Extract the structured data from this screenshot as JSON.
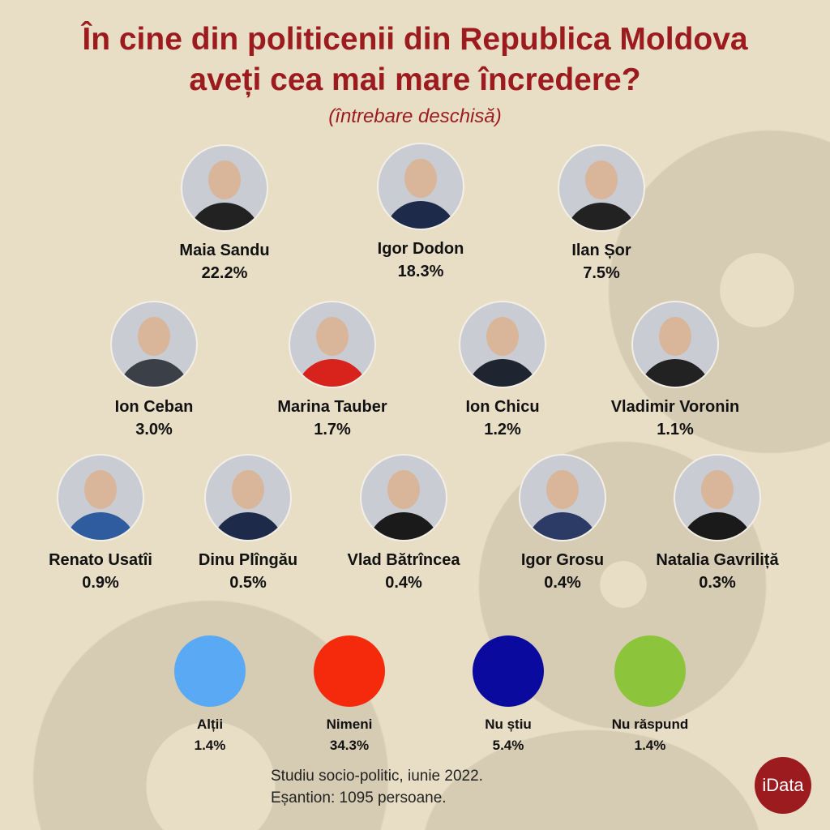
{
  "title_line1": "În cine din politicenii din Republica Moldova",
  "title_line2": "aveți cea mai mare încredere?",
  "subtitle": "(întrebare deschisă)",
  "people": [
    {
      "name": "Maia Sandu",
      "percent": "22.2%",
      "suit": "#222"
    },
    {
      "name": "Igor Dodon",
      "percent": "18.3%",
      "suit": "#1d2a4a"
    },
    {
      "name": "Ilan Șor",
      "percent": "7.5%",
      "suit": "#222"
    },
    {
      "name": "Ion Ceban",
      "percent": "3.0%",
      "suit": "#3a3f48"
    },
    {
      "name": "Marina Tauber",
      "percent": "1.7%",
      "suit": "#d8231c"
    },
    {
      "name": "Ion Chicu",
      "percent": "1.2%",
      "suit": "#1f2530"
    },
    {
      "name": "Vladimir Voronin",
      "percent": "1.1%",
      "suit": "#222"
    },
    {
      "name": "Renato Usatîi",
      "percent": "0.9%",
      "suit": "#2e5c9e"
    },
    {
      "name": "Dinu Plîngău",
      "percent": "0.5%",
      "suit": "#1d2a4a"
    },
    {
      "name": "Vlad Bătrîncea",
      "percent": "0.4%",
      "suit": "#1a1a1a"
    },
    {
      "name": "Igor Grosu",
      "percent": "0.4%",
      "suit": "#2b3b66"
    },
    {
      "name": "Natalia Gavriliță",
      "percent": "0.3%",
      "suit": "#1a1a1a"
    }
  ],
  "others": [
    {
      "label": "Alții",
      "percent": "1.4%",
      "color": "#5aa9f5"
    },
    {
      "label": "Nimeni",
      "percent": "34.3%",
      "color": "#f52a0c"
    },
    {
      "label": "Nu știu",
      "percent": "5.4%",
      "color": "#0a0a9e"
    },
    {
      "label": "Nu răspund",
      "percent": "1.4%",
      "color": "#8cc43c"
    }
  ],
  "footnote_line1": "Studiu socio-politic, iunie 2022.",
  "footnote_line2": "Eșantion: 1095 persoane.",
  "logo": "iData",
  "colors": {
    "title": "#9b1b1f",
    "background": "#e8dec6"
  }
}
